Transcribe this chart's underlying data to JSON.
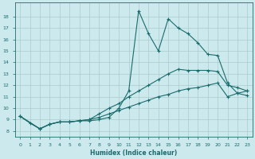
{
  "xlabel": "Humidex (Indice chaleur)",
  "background_color": "#cce9ee",
  "grid_color": "#aacccc",
  "line_color": "#1a6b6b",
  "xlim": [
    -0.5,
    23.5
  ],
  "ylim": [
    7.5,
    19.2
  ],
  "xticks": [
    0,
    1,
    2,
    3,
    4,
    5,
    6,
    7,
    8,
    9,
    10,
    11,
    12,
    13,
    14,
    15,
    16,
    17,
    18,
    19,
    20,
    21,
    22,
    23
  ],
  "yticks": [
    8,
    9,
    10,
    11,
    12,
    13,
    14,
    15,
    16,
    17,
    18
  ],
  "line1_x": [
    0,
    1,
    2,
    3,
    4,
    5,
    6,
    7,
    8,
    9,
    10,
    11,
    12,
    13,
    14,
    15,
    16,
    17,
    18,
    19,
    20,
    21,
    22,
    23
  ],
  "line1_y": [
    9.3,
    8.7,
    8.2,
    8.6,
    8.8,
    8.8,
    8.9,
    8.9,
    9.0,
    9.2,
    10.0,
    11.5,
    18.5,
    16.5,
    15.0,
    17.8,
    17.0,
    16.5,
    15.7,
    14.7,
    14.6,
    12.2,
    11.3,
    11.1
  ],
  "line2_x": [
    0,
    2,
    3,
    4,
    5,
    6,
    7,
    8,
    9,
    10,
    11,
    12,
    13,
    14,
    15,
    16,
    17,
    18,
    19,
    20,
    21,
    22,
    23
  ],
  "line2_y": [
    9.3,
    8.2,
    8.6,
    8.8,
    8.8,
    8.9,
    9.0,
    9.5,
    10.0,
    10.4,
    11.0,
    11.5,
    12.0,
    12.5,
    13.0,
    13.4,
    13.3,
    13.3,
    13.3,
    13.2,
    12.0,
    11.8,
    11.5
  ],
  "line3_x": [
    0,
    2,
    3,
    4,
    5,
    6,
    7,
    8,
    9,
    10,
    11,
    12,
    13,
    14,
    15,
    16,
    17,
    18,
    19,
    20,
    21,
    22,
    23
  ],
  "line3_y": [
    9.3,
    8.2,
    8.6,
    8.8,
    8.8,
    8.9,
    9.0,
    9.2,
    9.5,
    9.8,
    10.1,
    10.4,
    10.7,
    11.0,
    11.2,
    11.5,
    11.7,
    11.8,
    12.0,
    12.2,
    11.0,
    11.3,
    11.5
  ]
}
